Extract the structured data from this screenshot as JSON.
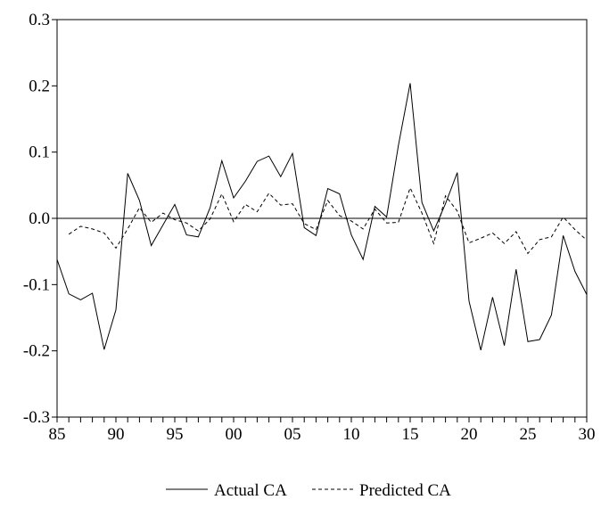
{
  "chart_data": {
    "type": "line",
    "title": "",
    "xlabel": "",
    "ylabel": "",
    "xlim": [
      1985,
      2030
    ],
    "ylim": [
      -0.3,
      0.3
    ],
    "x_ticks": [
      {
        "value": 1985,
        "label": "85"
      },
      {
        "value": 1990,
        "label": "90"
      },
      {
        "value": 1995,
        "label": "95"
      },
      {
        "value": 2000,
        "label": "00"
      },
      {
        "value": 2005,
        "label": "05"
      },
      {
        "value": 2010,
        "label": "10"
      },
      {
        "value": 2015,
        "label": "15"
      },
      {
        "value": 2020,
        "label": "20"
      },
      {
        "value": 2025,
        "label": "25"
      },
      {
        "value": 2030,
        "label": "30"
      }
    ],
    "y_ticks": [
      {
        "value": 0.3,
        "label": "0.3"
      },
      {
        "value": 0.2,
        "label": "0.2"
      },
      {
        "value": 0.1,
        "label": "0.1"
      },
      {
        "value": 0.0,
        "label": "0.0"
      },
      {
        "value": -0.1,
        "label": "-0.1"
      },
      {
        "value": -0.2,
        "label": "-0.2"
      },
      {
        "value": -0.3,
        "label": "-0.3"
      }
    ],
    "reference_line_y": 0.0,
    "grid": false,
    "legend_position": "bottom-center",
    "series": [
      {
        "name": "Actual CA",
        "style": "solid",
        "color": "#000000",
        "x": [
          1985,
          1986,
          1987,
          1988,
          1989,
          1990,
          1991,
          1992,
          1993,
          1994,
          1995,
          1996,
          1997,
          1998,
          1999,
          2000,
          2001,
          2002,
          2003,
          2004,
          2005,
          2006,
          2007,
          2008,
          2009,
          2010,
          2011,
          2012,
          2013,
          2014,
          2015,
          2016,
          2017,
          2018,
          2019,
          2020,
          2021,
          2022,
          2023,
          2024,
          2025,
          2026,
          2027,
          2028,
          2029,
          2030
        ],
        "values": [
          -0.062,
          -0.114,
          -0.123,
          -0.113,
          -0.198,
          -0.138,
          0.068,
          0.027,
          -0.041,
          -0.01,
          0.021,
          -0.025,
          -0.028,
          0.016,
          0.087,
          0.031,
          0.056,
          0.086,
          0.094,
          0.063,
          0.098,
          -0.014,
          -0.026,
          0.045,
          0.037,
          -0.025,
          -0.062,
          0.018,
          0.002,
          0.11,
          0.204,
          0.024,
          -0.019,
          0.022,
          0.069,
          -0.125,
          -0.199,
          -0.119,
          -0.192,
          -0.077,
          -0.186,
          -0.183,
          -0.146,
          -0.026,
          -0.08,
          -0.115
        ]
      },
      {
        "name": "Predicted CA",
        "style": "dashed",
        "color": "#000000",
        "x": [
          1986,
          1987,
          1988,
          1989,
          1990,
          1991,
          1992,
          1993,
          1994,
          1995,
          1996,
          1997,
          1998,
          1999,
          2000,
          2001,
          2002,
          2003,
          2004,
          2005,
          2006,
          2007,
          2008,
          2009,
          2010,
          2011,
          2012,
          2013,
          2014,
          2015,
          2016,
          2017,
          2018,
          2019,
          2020,
          2021,
          2022,
          2023,
          2024,
          2025,
          2026,
          2027,
          2028,
          2029,
          2030
        ],
        "values": [
          -0.024,
          -0.012,
          -0.016,
          -0.022,
          -0.045,
          -0.016,
          0.016,
          -0.006,
          0.008,
          -0.002,
          -0.007,
          -0.019,
          -0.001,
          0.037,
          -0.005,
          0.021,
          0.01,
          0.038,
          0.02,
          0.022,
          -0.008,
          -0.017,
          0.027,
          0.004,
          -0.004,
          -0.016,
          0.014,
          -0.007,
          -0.006,
          0.046,
          0.008,
          -0.038,
          0.034,
          0.011,
          -0.037,
          -0.03,
          -0.022,
          -0.038,
          -0.02,
          -0.053,
          -0.032,
          -0.028,
          0.002,
          -0.017,
          -0.033
        ]
      }
    ]
  }
}
